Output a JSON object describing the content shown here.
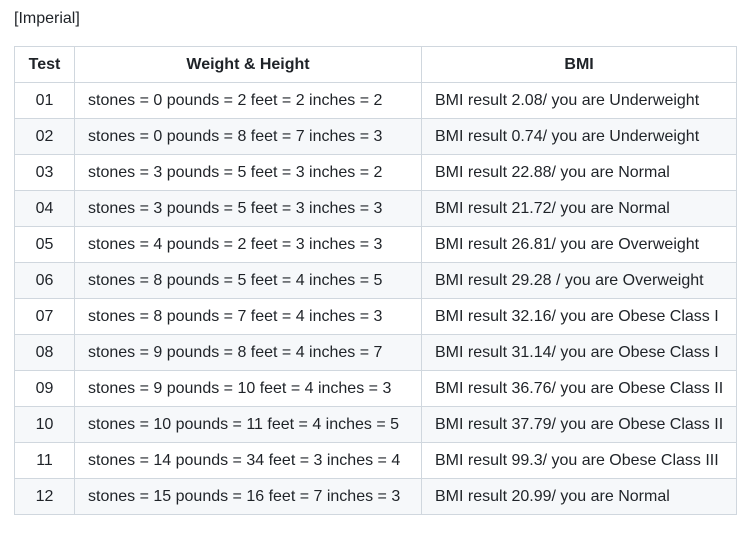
{
  "heading": "[Imperial]",
  "table": {
    "headers": {
      "test": "Test",
      "weight_height": "Weight & Height",
      "bmi": "BMI"
    },
    "rows": [
      {
        "test": "01",
        "weight_height": "stones = 0 pounds = 2 feet = 2 inches = 2",
        "bmi": "BMI result 2.08/ you are Underweight"
      },
      {
        "test": "02",
        "weight_height": "stones = 0 pounds = 8 feet = 7 inches = 3",
        "bmi": "BMI result 0.74/ you are Underweight"
      },
      {
        "test": "03",
        "weight_height": "stones = 3 pounds = 5 feet = 3 inches = 2",
        "bmi": "BMI result 22.88/ you are Normal"
      },
      {
        "test": "04",
        "weight_height": "stones = 3 pounds = 5 feet = 3 inches = 3",
        "bmi": "BMI result 21.72/ you are Normal"
      },
      {
        "test": "05",
        "weight_height": "stones = 4 pounds = 2 feet = 3 inches = 3",
        "bmi": "BMI result 26.81/ you are Overweight"
      },
      {
        "test": "06",
        "weight_height": "stones = 8 pounds = 5 feet = 4 inches = 5",
        "bmi": "BMI result 29.28 / you are Overweight"
      },
      {
        "test": "07",
        "weight_height": "stones = 8 pounds = 7 feet = 4 inches = 3",
        "bmi": "BMI result 32.16/ you are Obese Class I"
      },
      {
        "test": "08",
        "weight_height": "stones = 9 pounds = 8 feet = 4 inches = 7",
        "bmi": "BMI result 31.14/ you are Obese Class I"
      },
      {
        "test": "09",
        "weight_height": "stones = 9 pounds = 10 feet = 4 inches = 3",
        "bmi": "BMI result 36.76/ you are Obese Class II"
      },
      {
        "test": "10",
        "weight_height": "stones = 10 pounds = 11 feet = 4 inches = 5",
        "bmi": "BMI result 37.79/ you are Obese Class II"
      },
      {
        "test": "11",
        "weight_height": "stones = 14 pounds = 34 feet = 3 inches = 4",
        "bmi": "BMI result 99.3/ you are Obese Class III"
      },
      {
        "test": "12",
        "weight_height": "stones = 15 pounds = 16 feet = 7 inches = 3",
        "bmi": "BMI result 20.99/ you are Normal"
      }
    ]
  }
}
